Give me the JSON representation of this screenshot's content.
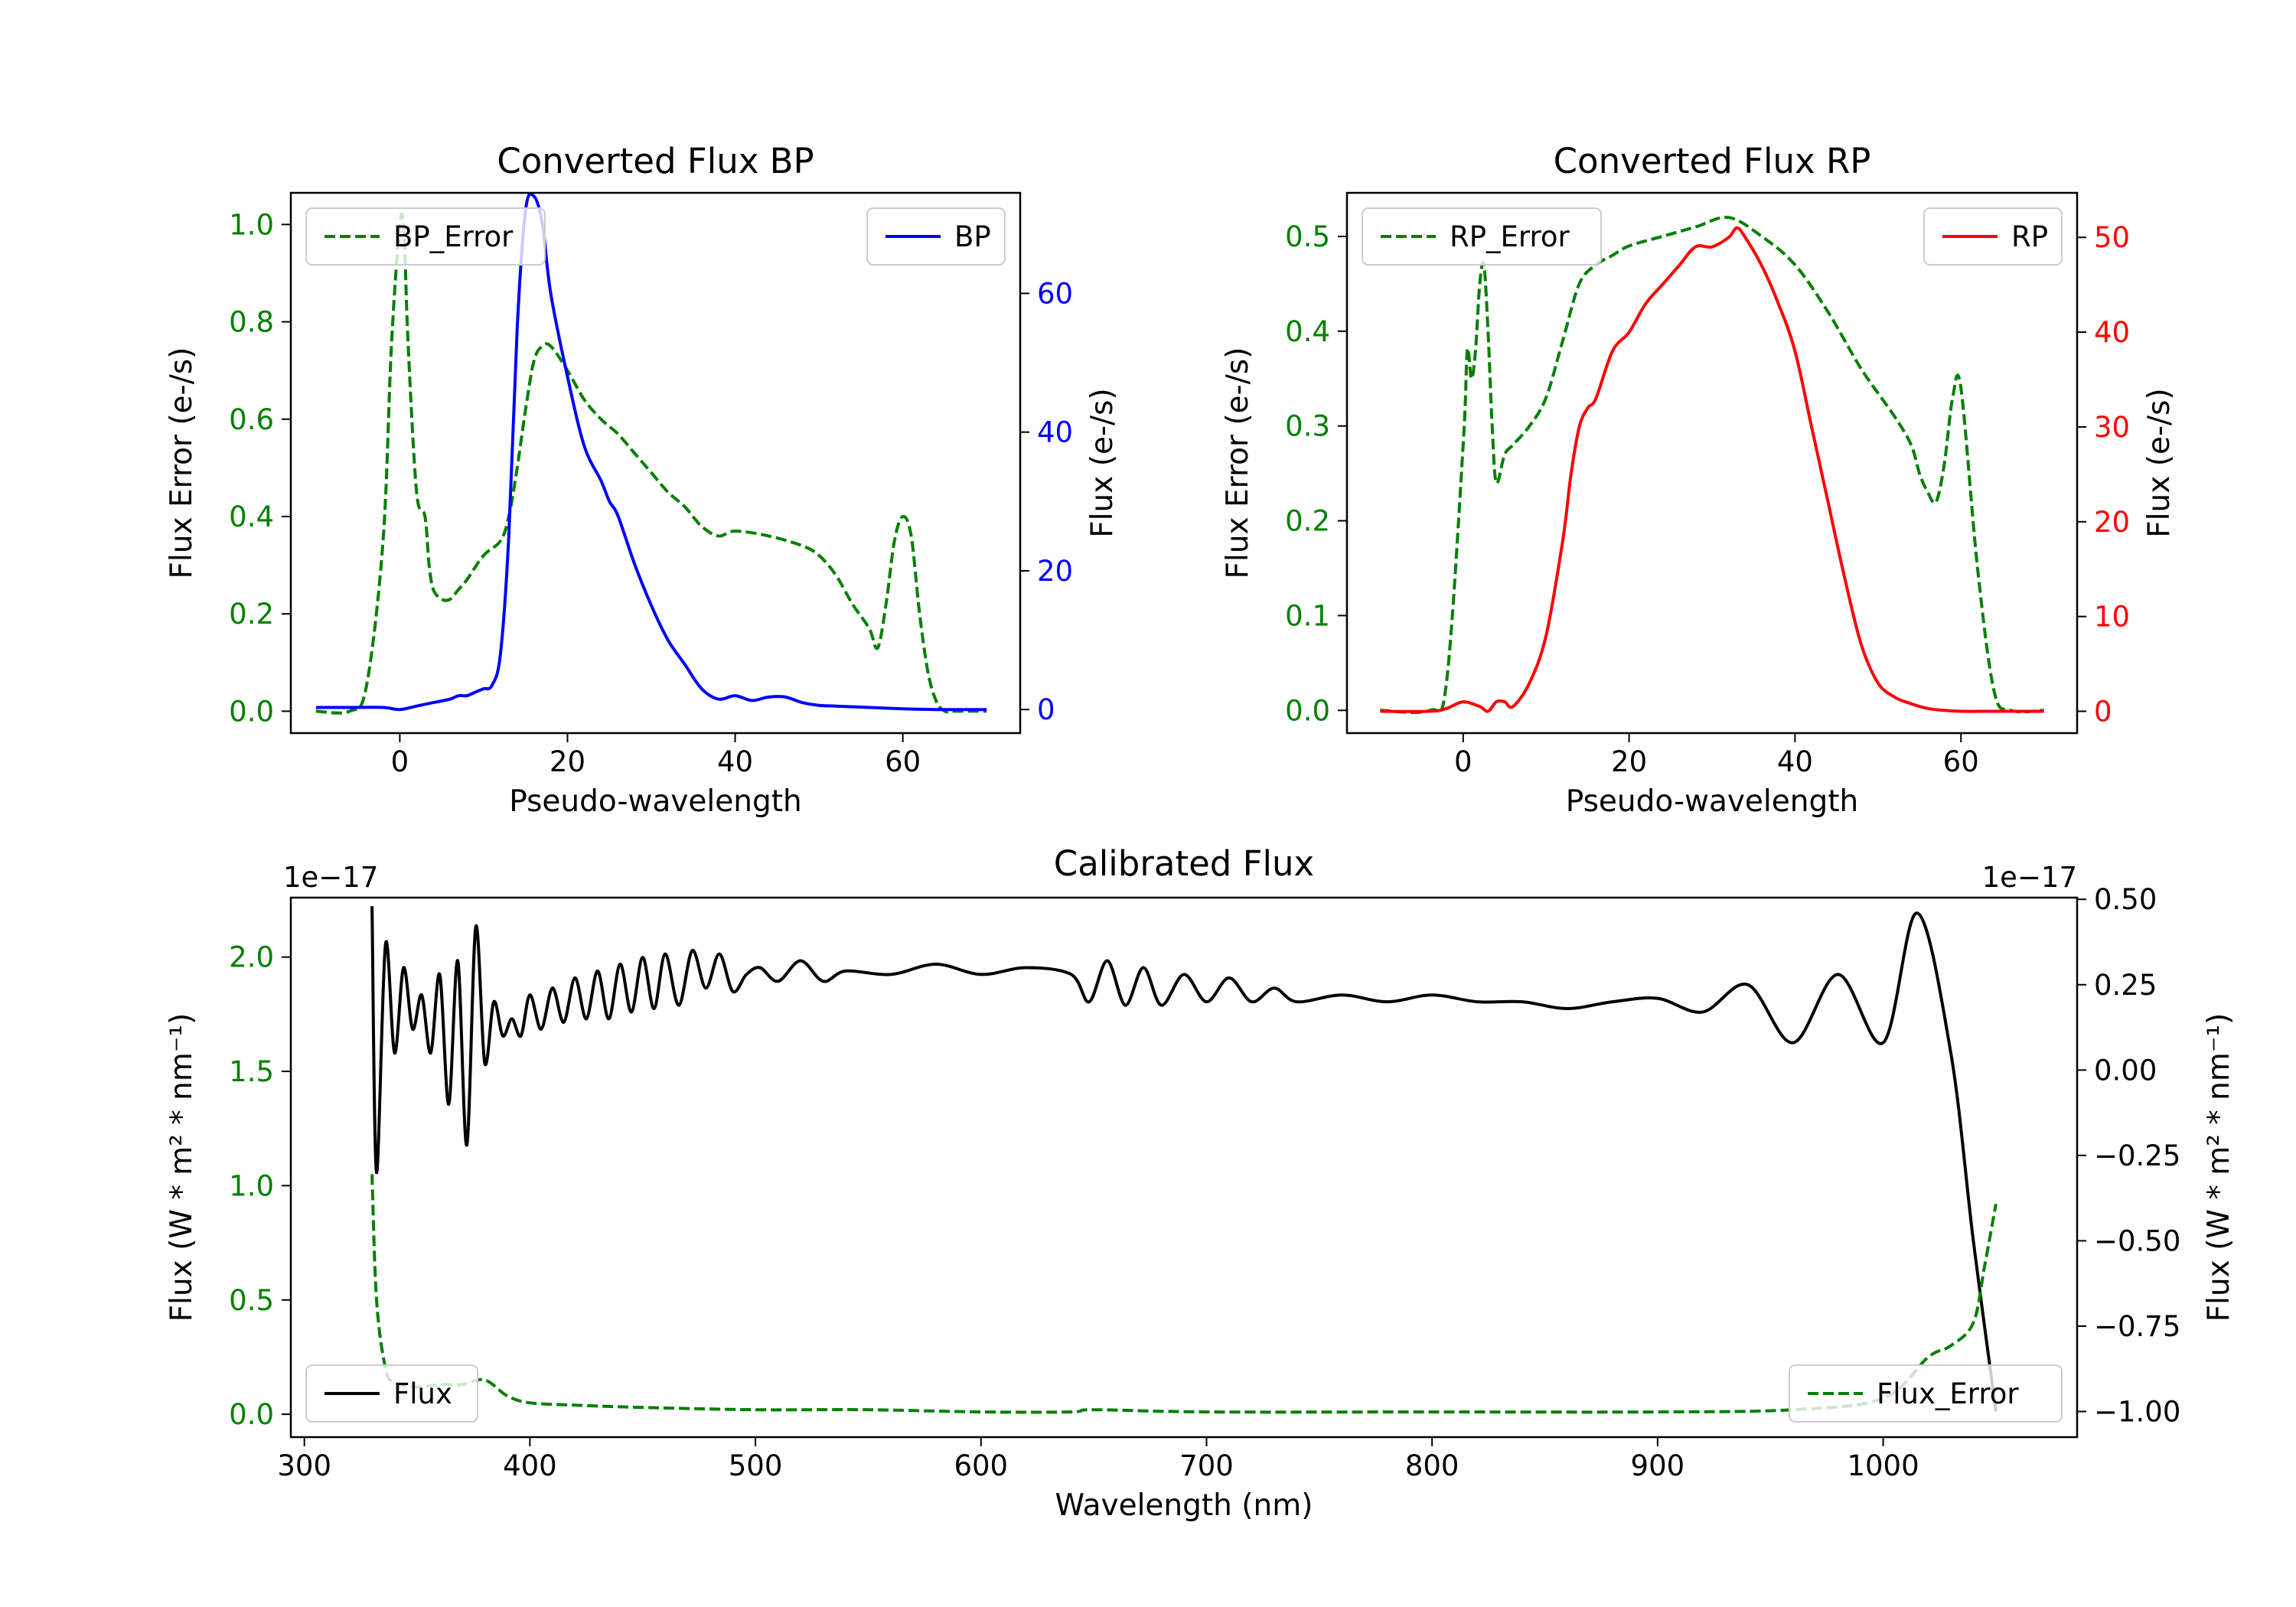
{
  "chart_data": [
    {
      "type": "line",
      "title": "Converted Flux BP",
      "xlabel": "Pseudo-wavelength",
      "xlim": [
        -13,
        74
      ],
      "xticks": [
        0,
        20,
        40,
        60
      ],
      "left_axis": {
        "label": "Flux Error (e-/s)",
        "color": "#008000",
        "ylim": [
          -0.045,
          1.065
        ],
        "ticks": [
          0.0,
          0.2,
          0.4,
          0.6,
          0.8,
          1.0
        ],
        "tick_labels": [
          "0.0",
          "0.2",
          "0.4",
          "0.6",
          "0.8",
          "1.0"
        ]
      },
      "right_axis": {
        "label": "Flux (e-/s)",
        "color": "#0000ff",
        "ylim": [
          -3.4,
          74.5
        ],
        "ticks": [
          0,
          20,
          40,
          60
        ],
        "tick_labels": [
          "0",
          "20",
          "40",
          "60"
        ]
      },
      "series": [
        {
          "name": "BP_Error",
          "axis": "left",
          "style": "dashed",
          "color": "#008000",
          "x": [
            -10,
            -6,
            -4,
            -2,
            -1,
            0,
            0.5,
            1,
            2,
            3,
            3.5,
            4,
            5,
            6,
            7,
            8,
            10,
            12,
            13,
            14,
            15,
            16,
            17,
            18,
            20,
            22,
            24,
            26,
            28,
            30,
            32,
            34,
            36,
            38,
            40,
            44,
            48,
            50,
            52,
            54,
            56,
            57,
            58,
            59,
            60,
            61,
            62,
            63,
            64,
            65,
            66,
            68,
            70
          ],
          "values": [
            0.0,
            0.0,
            0.05,
            0.35,
            0.75,
            1.0,
            0.98,
            0.75,
            0.45,
            0.4,
            0.3,
            0.25,
            0.23,
            0.23,
            0.25,
            0.27,
            0.32,
            0.35,
            0.4,
            0.5,
            0.62,
            0.72,
            0.75,
            0.75,
            0.7,
            0.64,
            0.6,
            0.57,
            0.53,
            0.49,
            0.45,
            0.42,
            0.38,
            0.36,
            0.37,
            0.36,
            0.34,
            0.32,
            0.28,
            0.22,
            0.17,
            0.13,
            0.22,
            0.35,
            0.4,
            0.36,
            0.2,
            0.08,
            0.02,
            0.0,
            0.0,
            0.0,
            0.0
          ]
        },
        {
          "name": "BP",
          "axis": "right",
          "style": "solid",
          "color": "#0000ff",
          "x": [
            -10,
            -6,
            -2,
            0,
            2,
            4,
            6,
            7,
            8,
            9,
            10,
            11,
            12,
            13,
            14,
            15,
            16,
            17,
            18,
            20,
            22,
            24,
            25,
            26,
            28,
            30,
            32,
            34,
            36,
            38,
            40,
            42,
            44,
            46,
            48,
            50,
            52,
            56,
            60,
            64,
            70
          ],
          "values": [
            0.3,
            0.3,
            0.3,
            0.0,
            0.5,
            1.0,
            1.5,
            2.0,
            2.0,
            2.5,
            3.0,
            3.5,
            8.0,
            25.0,
            55.0,
            72.0,
            74.0,
            70.0,
            60.0,
            48.0,
            38.0,
            33.0,
            30.0,
            28.0,
            21.0,
            15.0,
            10.0,
            6.5,
            3.0,
            1.5,
            2.0,
            1.3,
            1.8,
            1.8,
            1.0,
            0.6,
            0.5,
            0.3,
            0.1,
            0.0,
            0.0
          ]
        }
      ],
      "legends": [
        {
          "entries": [
            "BP_Error"
          ],
          "placement": "upper left"
        },
        {
          "entries": [
            "BP"
          ],
          "placement": "upper right"
        }
      ]
    },
    {
      "type": "line",
      "title": "Converted Flux RP",
      "xlabel": "Pseudo-wavelength",
      "xlim": [
        -14,
        74
      ],
      "xticks": [
        0,
        20,
        40,
        60
      ],
      "left_axis": {
        "label": "Flux Error (e-/s)",
        "color": "#008000",
        "ylim": [
          -0.024,
          0.546
        ],
        "ticks": [
          0.0,
          0.1,
          0.2,
          0.3,
          0.4,
          0.5
        ],
        "tick_labels": [
          "0.0",
          "0.1",
          "0.2",
          "0.3",
          "0.4",
          "0.5"
        ]
      },
      "right_axis": {
        "label": "Flux (e-/s)",
        "color": "#ff0000",
        "ylim": [
          -2.3,
          54.7
        ],
        "ticks": [
          0,
          10,
          20,
          30,
          40,
          50
        ],
        "tick_labels": [
          "0",
          "10",
          "20",
          "30",
          "40",
          "50"
        ]
      },
      "series": [
        {
          "name": "RP_Error",
          "axis": "left",
          "style": "dashed",
          "color": "#008000",
          "x": [
            -10,
            -4,
            -2,
            0,
            0.5,
            1,
            1.5,
            2,
            2.5,
            3,
            3.5,
            4,
            5,
            6,
            8,
            10,
            12,
            14,
            16,
            18,
            20,
            24,
            28,
            32,
            36,
            40,
            44,
            48,
            52,
            54,
            55,
            56,
            57,
            58,
            59,
            60,
            62,
            64,
            66,
            70
          ],
          "values": [
            0.0,
            0.0,
            0.03,
            0.28,
            0.38,
            0.35,
            0.38,
            0.45,
            0.47,
            0.4,
            0.3,
            0.24,
            0.27,
            0.28,
            0.3,
            0.33,
            0.39,
            0.45,
            0.47,
            0.48,
            0.49,
            0.5,
            0.51,
            0.52,
            0.5,
            0.47,
            0.42,
            0.36,
            0.31,
            0.28,
            0.25,
            0.23,
            0.22,
            0.26,
            0.33,
            0.34,
            0.15,
            0.02,
            0.0,
            0.0
          ]
        },
        {
          "name": "RP",
          "axis": "right",
          "style": "solid",
          "color": "#ff0000",
          "x": [
            -10,
            -4,
            -2,
            0,
            2,
            3,
            4,
            5,
            6,
            8,
            10,
            12,
            13,
            14,
            15,
            16,
            18,
            20,
            22,
            24,
            26,
            28,
            30,
            32,
            33,
            34,
            36,
            38,
            40,
            42,
            44,
            46,
            48,
            50,
            52,
            54,
            56,
            58,
            60,
            64,
            70
          ],
          "values": [
            0.0,
            0.0,
            0.3,
            1.0,
            0.5,
            0.0,
            1.0,
            1.0,
            0.5,
            3.0,
            8.0,
            18.0,
            25.0,
            30.0,
            32.0,
            33.0,
            38.0,
            40.0,
            43.0,
            45.0,
            47.0,
            49.0,
            49.0,
            50.0,
            51.0,
            50.0,
            47.0,
            43.0,
            38.0,
            30.0,
            22.0,
            14.0,
            7.0,
            3.0,
            1.5,
            0.8,
            0.3,
            0.1,
            0.0,
            0.0,
            0.0
          ]
        }
      ],
      "legends": [
        {
          "entries": [
            "RP_Error"
          ],
          "placement": "upper left"
        },
        {
          "entries": [
            "RP"
          ],
          "placement": "upper right"
        }
      ]
    },
    {
      "type": "line",
      "title": "Calibrated Flux",
      "xlabel": "Wavelength (nm)",
      "xlim": [
        294,
        1086
      ],
      "xticks": [
        300,
        400,
        500,
        600,
        700,
        800,
        900,
        1000
      ],
      "left_axis": {
        "label": "Flux (W * m² * nm⁻¹)",
        "color": "#008000",
        "offset_text": "1e−17",
        "ylim": [
          -0.1,
          2.26
        ],
        "ticks": [
          0.0,
          0.5,
          1.0,
          1.5,
          2.0
        ],
        "tick_labels": [
          "0.0",
          "0.5",
          "1.0",
          "1.5",
          "2.0"
        ]
      },
      "right_axis": {
        "label": "Flux (W * m² * nm⁻¹)",
        "color": "#000000",
        "offset_text": "1e−17",
        "ylim": [
          -1.075,
          0.505
        ],
        "ticks": [
          -1.0,
          -0.75,
          -0.5,
          -0.25,
          0.0,
          0.25,
          0.5
        ],
        "tick_labels": [
          "−1.00",
          "−0.75",
          "−0.50",
          "−0.25",
          "0.00",
          "0.25",
          "0.50"
        ]
      },
      "series": [
        {
          "name": "Flux",
          "axis": "right",
          "style": "solid",
          "color": "#000000",
          "x": [
            330,
            332,
            336,
            340,
            344,
            348,
            352,
            356,
            360,
            364,
            368,
            372,
            376,
            380,
            384,
            388,
            392,
            396,
            400,
            405,
            410,
            415,
            420,
            425,
            430,
            435,
            440,
            445,
            450,
            455,
            460,
            466,
            472,
            478,
            484,
            490,
            496,
            502,
            510,
            520,
            530,
            540,
            560,
            580,
            600,
            620,
            640,
            648,
            656,
            664,
            672,
            680,
            690,
            700,
            710,
            720,
            730,
            740,
            760,
            780,
            800,
            820,
            840,
            860,
            880,
            900,
            920,
            940,
            960,
            980,
            1000,
            1015,
            1030,
            1040,
            1050
          ],
          "values": [
            0.48,
            -0.3,
            0.37,
            0.05,
            0.3,
            0.12,
            0.22,
            0.05,
            0.28,
            -0.1,
            0.32,
            -0.22,
            0.42,
            0.02,
            0.2,
            0.1,
            0.15,
            0.1,
            0.22,
            0.12,
            0.24,
            0.14,
            0.27,
            0.15,
            0.29,
            0.15,
            0.31,
            0.17,
            0.33,
            0.18,
            0.34,
            0.19,
            0.35,
            0.24,
            0.34,
            0.23,
            0.28,
            0.3,
            0.26,
            0.32,
            0.26,
            0.29,
            0.28,
            0.31,
            0.28,
            0.3,
            0.28,
            0.2,
            0.32,
            0.19,
            0.3,
            0.19,
            0.28,
            0.2,
            0.27,
            0.2,
            0.24,
            0.2,
            0.22,
            0.2,
            0.22,
            0.2,
            0.2,
            0.18,
            0.2,
            0.21,
            0.17,
            0.25,
            0.08,
            0.28,
            0.08,
            0.46,
            0.05,
            -0.5,
            -1.0
          ]
        },
        {
          "name": "Flux_Error",
          "axis": "left",
          "style": "dashed",
          "color": "#008000",
          "x": [
            330,
            332,
            336,
            340,
            350,
            360,
            370,
            380,
            390,
            400,
            420,
            450,
            500,
            550,
            600,
            640,
            650,
            700,
            800,
            900,
            960,
            1000,
            1020,
            1030,
            1040,
            1045,
            1050
          ],
          "values": [
            1.05,
            0.5,
            0.2,
            0.14,
            0.12,
            0.13,
            0.13,
            0.15,
            0.08,
            0.05,
            0.04,
            0.03,
            0.02,
            0.02,
            0.01,
            0.01,
            0.02,
            0.01,
            0.01,
            0.01,
            0.02,
            0.07,
            0.25,
            0.3,
            0.4,
            0.65,
            0.92
          ]
        }
      ],
      "legends": [
        {
          "entries": [
            "Flux"
          ],
          "placement": "lower left"
        },
        {
          "entries": [
            "Flux_Error"
          ],
          "placement": "lower right"
        }
      ]
    }
  ]
}
